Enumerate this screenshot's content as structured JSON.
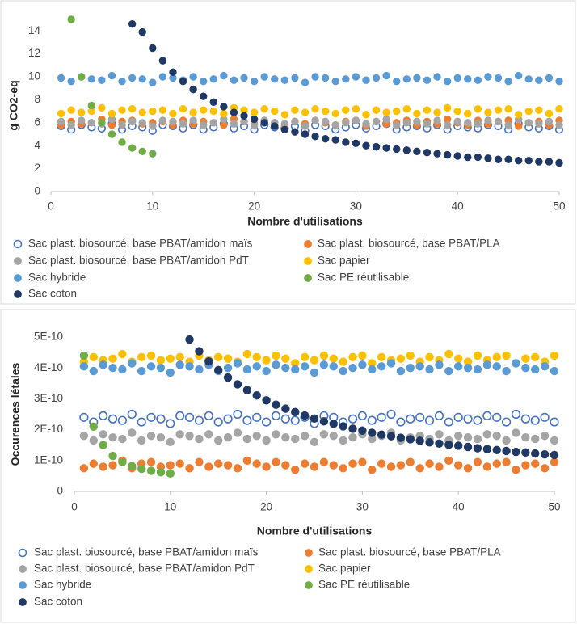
{
  "chart_data": [
    {
      "type": "scatter",
      "x_label": "Nombre d'utilisations",
      "y_label": "g CO2-eq",
      "xlim": [
        0,
        50
      ],
      "xticks": [
        0,
        10,
        20,
        30,
        40,
        50
      ],
      "ylim": [
        0,
        15
      ],
      "yticks": [
        0,
        2,
        4,
        6,
        8,
        10,
        12,
        14
      ],
      "grid": false,
      "x": [
        1,
        2,
        3,
        4,
        5,
        6,
        7,
        8,
        9,
        10,
        11,
        12,
        13,
        14,
        15,
        16,
        17,
        18,
        19,
        20,
        21,
        22,
        23,
        24,
        25,
        26,
        27,
        28,
        29,
        30,
        31,
        32,
        33,
        34,
        35,
        36,
        37,
        38,
        39,
        40,
        41,
        42,
        43,
        44,
        45,
        46,
        47,
        48,
        49,
        50
      ],
      "series": [
        {
          "name": "Sac plast. biosourcé, base PBAT/amidon maïs",
          "color": "#4472c4",
          "marker": "hollow",
          "values": [
            5.7,
            5.4,
            5.8,
            5.6,
            5.5,
            5.9,
            5.4,
            5.7,
            5.6,
            5.3,
            5.8,
            5.7,
            5.5,
            5.8,
            5.4,
            5.6,
            5.9,
            5.5,
            5.7,
            5.4,
            5.8,
            5.6,
            5.5,
            5.7,
            5.3,
            5.8,
            5.7,
            5.4,
            5.6,
            5.8,
            5.5,
            5.7,
            5.9,
            5.4,
            5.6,
            5.7,
            5.5,
            5.8,
            5.4,
            5.7,
            5.6,
            5.5,
            5.8,
            5.7,
            5.4,
            5.9,
            5.6,
            5.5,
            5.7,
            5.4
          ]
        },
        {
          "name": "Sac plast. biosourcé, base PBAT/PLA",
          "color": "#ed7d31",
          "values": [
            5.8,
            6.1,
            5.9,
            6.0,
            6.3,
            5.8,
            6.1,
            6.2,
            5.9,
            6.0,
            6.1,
            5.8,
            6.2,
            5.9,
            6.1,
            6.0,
            5.8,
            6.3,
            6.1,
            5.9,
            6.2,
            6.0,
            5.7,
            6.1,
            5.9,
            6.2,
            6.0,
            5.8,
            6.1,
            6.2,
            5.7,
            6.1,
            5.9,
            6.0,
            6.2,
            5.8,
            6.1,
            5.9,
            6.3,
            6.0,
            5.8,
            6.2,
            5.9,
            6.1,
            6.2,
            5.7,
            6.0,
            6.1,
            5.8,
            6.2
          ]
        },
        {
          "name": "Sac plast. biosourcé, base PBAT/amidon PdT",
          "color": "#a5a5a5",
          "values": [
            6.1,
            5.8,
            6.2,
            6.0,
            5.9,
            6.3,
            5.8,
            6.1,
            6.0,
            5.7,
            6.2,
            6.1,
            5.9,
            6.2,
            5.8,
            6.0,
            6.3,
            5.9,
            6.1,
            5.8,
            6.2,
            6.0,
            5.9,
            6.1,
            5.7,
            6.2,
            6.1,
            5.8,
            6.0,
            6.2,
            5.9,
            6.1,
            6.3,
            5.8,
            6.0,
            6.1,
            5.9,
            6.2,
            5.8,
            6.1,
            6.0,
            5.9,
            6.2,
            6.1,
            5.8,
            6.3,
            6.0,
            5.9,
            6.1,
            5.8
          ]
        },
        {
          "name": "Sac papier",
          "color": "#ffc000",
          "values": [
            6.8,
            7.1,
            6.9,
            7.0,
            7.3,
            6.8,
            7.1,
            7.2,
            6.9,
            7.0,
            7.1,
            6.8,
            7.2,
            6.9,
            7.1,
            7.0,
            6.8,
            7.3,
            7.1,
            6.9,
            7.2,
            7.0,
            6.7,
            7.1,
            6.9,
            7.2,
            7.0,
            6.8,
            7.1,
            7.2,
            6.7,
            7.1,
            6.9,
            7.0,
            7.2,
            6.8,
            7.1,
            6.9,
            7.3,
            7.0,
            6.8,
            7.2,
            6.9,
            7.1,
            7.2,
            6.7,
            7.0,
            7.1,
            6.8,
            7.2
          ]
        },
        {
          "name": "Sac hybride",
          "color": "#5b9bd5",
          "values": [
            9.9,
            9.6,
            10.0,
            9.8,
            9.7,
            10.1,
            9.6,
            9.9,
            9.8,
            9.5,
            10.0,
            9.9,
            9.7,
            10.0,
            9.6,
            9.8,
            10.1,
            9.7,
            9.9,
            9.6,
            10.0,
            9.8,
            9.7,
            9.9,
            9.5,
            10.0,
            9.9,
            9.6,
            9.8,
            10.0,
            9.7,
            9.9,
            10.1,
            9.6,
            9.8,
            9.9,
            9.7,
            10.0,
            9.6,
            9.9,
            9.8,
            9.7,
            10.0,
            9.9,
            9.6,
            10.1,
            9.8,
            9.7,
            9.9,
            9.6
          ]
        },
        {
          "name": "Sac PE réutilisable",
          "color": "#70ad47",
          "values": [
            null,
            15,
            10,
            7.5,
            6,
            5,
            4.3,
            3.8,
            3.5,
            3.3,
            null,
            null,
            null,
            null,
            null,
            null,
            null,
            null,
            null,
            null,
            null,
            null,
            null,
            null,
            null,
            null,
            null,
            null,
            null,
            null,
            null,
            null,
            null,
            null,
            null,
            null,
            null,
            null,
            null,
            null,
            null,
            null,
            null,
            null,
            null,
            null,
            null,
            null,
            null,
            null
          ]
        },
        {
          "name": "Sac coton",
          "color": "#203864",
          "values": [
            null,
            null,
            null,
            null,
            null,
            null,
            null,
            14.6,
            13.9,
            12.5,
            11.4,
            10.4,
            9.6,
            8.9,
            8.3,
            7.8,
            7.4,
            6.9,
            6.6,
            6.3,
            6.0,
            5.7,
            5.4,
            5.2,
            5.0,
            4.8,
            4.6,
            4.5,
            4.3,
            4.2,
            4.0,
            3.9,
            3.8,
            3.7,
            3.6,
            3.5,
            3.4,
            3.3,
            3.2,
            3.1,
            3.0,
            3.0,
            2.9,
            2.8,
            2.8,
            2.7,
            2.7,
            2.6,
            2.6,
            2.5
          ]
        }
      ]
    },
    {
      "type": "scatter",
      "x_label": "Nombre d'utilisations",
      "y_label": "Occurences létales",
      "xlim": [
        0,
        50
      ],
      "xticks": [
        0,
        10,
        20,
        30,
        40,
        50
      ],
      "ylim": [
        0,
        5e-10
      ],
      "yticks": [
        0,
        {
          "value": 1e-10,
          "label": "1E-10"
        },
        {
          "value": 2e-10,
          "label": "2E-10"
        },
        {
          "value": 3e-10,
          "label": "3E-10"
        },
        {
          "value": 4e-10,
          "label": "4E-10"
        },
        {
          "value": 5e-10,
          "label": "5E-10"
        }
      ],
      "grid": false,
      "x": [
        1,
        2,
        3,
        4,
        5,
        6,
        7,
        8,
        9,
        10,
        11,
        12,
        13,
        14,
        15,
        16,
        17,
        18,
        19,
        20,
        21,
        22,
        23,
        24,
        25,
        26,
        27,
        28,
        29,
        30,
        31,
        32,
        33,
        34,
        35,
        36,
        37,
        38,
        39,
        40,
        41,
        42,
        43,
        44,
        45,
        46,
        47,
        48,
        49,
        50
      ],
      "series": [
        {
          "name": "Sac plast. biosourcé, base PBAT/amidon maïs",
          "color": "#4472c4",
          "marker": "hollow",
          "values": [
            2.4e-10,
            2.25e-10,
            2.45e-10,
            2.35e-10,
            2.3e-10,
            2.5e-10,
            2.25e-10,
            2.4e-10,
            2.35e-10,
            2.2e-10,
            2.45e-10,
            2.4e-10,
            2.3e-10,
            2.45e-10,
            2.25e-10,
            2.35e-10,
            2.5e-10,
            2.3e-10,
            2.4e-10,
            2.25e-10,
            2.45e-10,
            2.35e-10,
            2.3e-10,
            2.4e-10,
            2.2e-10,
            2.45e-10,
            2.4e-10,
            2.25e-10,
            2.35e-10,
            2.45e-10,
            2.3e-10,
            2.4e-10,
            2.5e-10,
            2.25e-10,
            2.35e-10,
            2.4e-10,
            2.3e-10,
            2.45e-10,
            2.25e-10,
            2.4e-10,
            2.35e-10,
            2.3e-10,
            2.45e-10,
            2.4e-10,
            2.25e-10,
            2.5e-10,
            2.35e-10,
            2.3e-10,
            2.4e-10,
            2.25e-10
          ]
        },
        {
          "name": "Sac plast. biosourcé, base PBAT/PLA",
          "color": "#ed7d31",
          "values": [
            7.5e-11,
            9e-11,
            8e-11,
            8.5e-11,
            1e-10,
            7.5e-11,
            9e-11,
            9.5e-11,
            8e-11,
            8.5e-11,
            9e-11,
            7.5e-11,
            9.5e-11,
            8e-11,
            9e-11,
            8.5e-11,
            7.5e-11,
            1e-10,
            9e-11,
            8e-11,
            9.5e-11,
            8.5e-11,
            7e-11,
            9e-11,
            8e-11,
            9.5e-11,
            8.5e-11,
            7.5e-11,
            9e-11,
            9.5e-11,
            7e-11,
            9e-11,
            8e-11,
            8.5e-11,
            9.5e-11,
            7.5e-11,
            9e-11,
            8e-11,
            1e-10,
            8.5e-11,
            7.5e-11,
            9.5e-11,
            8e-11,
            9e-11,
            9.5e-11,
            7e-11,
            8.5e-11,
            9e-11,
            7.5e-11,
            9.5e-11
          ]
        },
        {
          "name": "Sac plast. biosourcé, base PBAT/amidon PdT",
          "color": "#a5a5a5",
          "values": [
            1.8e-10,
            1.65e-10,
            1.85e-10,
            1.75e-10,
            1.7e-10,
            1.9e-10,
            1.65e-10,
            1.8e-10,
            1.75e-10,
            1.6e-10,
            1.85e-10,
            1.8e-10,
            1.7e-10,
            1.85e-10,
            1.65e-10,
            1.75e-10,
            1.9e-10,
            1.7e-10,
            1.8e-10,
            1.65e-10,
            1.85e-10,
            1.75e-10,
            1.7e-10,
            1.8e-10,
            1.6e-10,
            1.85e-10,
            1.8e-10,
            1.65e-10,
            1.75e-10,
            1.85e-10,
            1.7e-10,
            1.8e-10,
            1.9e-10,
            1.65e-10,
            1.75e-10,
            1.8e-10,
            1.7e-10,
            1.85e-10,
            1.65e-10,
            1.8e-10,
            1.75e-10,
            1.7e-10,
            1.85e-10,
            1.8e-10,
            1.65e-10,
            1.9e-10,
            1.75e-10,
            1.7e-10,
            1.8e-10,
            1.65e-10
          ]
        },
        {
          "name": "Sac papier",
          "color": "#ffc000",
          "values": [
            4.2e-10,
            4.35e-10,
            4.25e-10,
            4.3e-10,
            4.45e-10,
            4.2e-10,
            4.35e-10,
            4.4e-10,
            4.25e-10,
            4.3e-10,
            4.35e-10,
            4.2e-10,
            4.4e-10,
            4.25e-10,
            4.35e-10,
            4.3e-10,
            4.2e-10,
            4.45e-10,
            4.35e-10,
            4.25e-10,
            4.4e-10,
            4.3e-10,
            4.15e-10,
            4.35e-10,
            4.25e-10,
            4.4e-10,
            4.3e-10,
            4.2e-10,
            4.35e-10,
            4.4e-10,
            4.15e-10,
            4.35e-10,
            4.25e-10,
            4.3e-10,
            4.4e-10,
            4.2e-10,
            4.35e-10,
            4.25e-10,
            4.45e-10,
            4.3e-10,
            4.2e-10,
            4.4e-10,
            4.25e-10,
            4.35e-10,
            4.4e-10,
            4.15e-10,
            4.3e-10,
            4.35e-10,
            4.2e-10,
            4.4e-10
          ]
        },
        {
          "name": "Sac hybride",
          "color": "#5b9bd5",
          "values": [
            4.05e-10,
            3.9e-10,
            4.1e-10,
            4e-10,
            3.95e-10,
            4.15e-10,
            3.9e-10,
            4.05e-10,
            4e-10,
            3.85e-10,
            4.1e-10,
            4.05e-10,
            3.95e-10,
            4.1e-10,
            3.9e-10,
            4e-10,
            4.15e-10,
            3.95e-10,
            4.05e-10,
            3.9e-10,
            4.1e-10,
            4e-10,
            3.95e-10,
            4.05e-10,
            3.85e-10,
            4.1e-10,
            4.05e-10,
            3.9e-10,
            4e-10,
            4.1e-10,
            3.95e-10,
            4.05e-10,
            4.15e-10,
            3.9e-10,
            4e-10,
            4.05e-10,
            3.95e-10,
            4.1e-10,
            3.9e-10,
            4.05e-10,
            4e-10,
            3.95e-10,
            4.1e-10,
            4.05e-10,
            3.9e-10,
            4.15e-10,
            4e-10,
            3.95e-10,
            4.05e-10,
            3.9e-10
          ]
        },
        {
          "name": "Sac PE réutilisable",
          "color": "#70ad47",
          "values": [
            4.4e-10,
            2.1e-10,
            1.5e-10,
            1.15e-10,
            9.5e-11,
            8.2e-11,
            7.3e-11,
            6.7e-11,
            6.2e-11,
            5.8e-11,
            null,
            null,
            null,
            null,
            null,
            null,
            null,
            null,
            null,
            null,
            null,
            null,
            null,
            null,
            null,
            null,
            null,
            null,
            null,
            null,
            null,
            null,
            null,
            null,
            null,
            null,
            null,
            null,
            null,
            null,
            null,
            null,
            null,
            null,
            null,
            null,
            null,
            null,
            null,
            null
          ]
        },
        {
          "name": "Sac coton",
          "color": "#203864",
          "values": [
            null,
            null,
            null,
            null,
            null,
            null,
            null,
            null,
            null,
            null,
            null,
            4.92e-10,
            4.54e-10,
            4.21e-10,
            3.93e-10,
            3.69e-10,
            3.47e-10,
            3.28e-10,
            3.11e-10,
            2.95e-10,
            2.81e-10,
            2.68e-10,
            2.57e-10,
            2.46e-10,
            2.36e-10,
            2.27e-10,
            2.19e-10,
            2.11e-10,
            2.03e-10,
            1.97e-10,
            1.9e-10,
            1.84e-10,
            1.79e-10,
            1.74e-10,
            1.69e-10,
            1.64e-10,
            1.59e-10,
            1.55e-10,
            1.51e-10,
            1.48e-10,
            1.44e-10,
            1.4e-10,
            1.37e-10,
            1.34e-10,
            1.31e-10,
            1.28e-10,
            1.26e-10,
            1.23e-10,
            1.2e-10,
            1.18e-10
          ]
        }
      ]
    }
  ]
}
